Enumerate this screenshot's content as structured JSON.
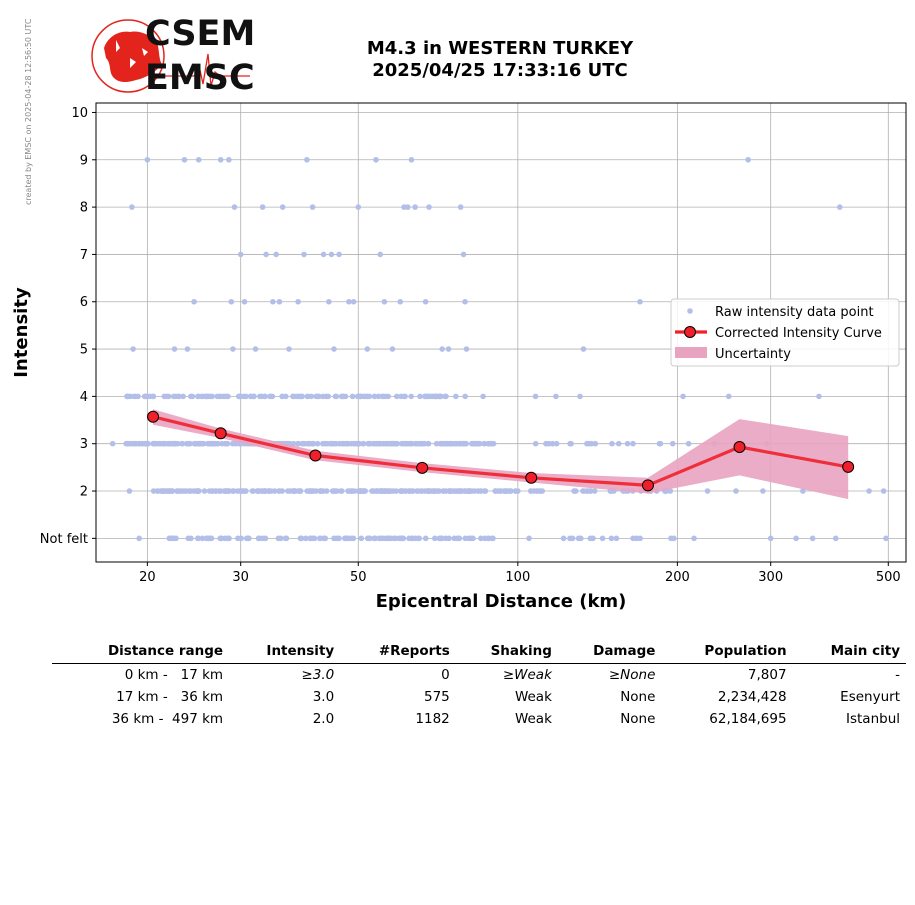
{
  "side_note": "created by EMSC on 2025-04-28 12:56:50 UTC",
  "logo": {
    "line1": "CSEM",
    "line2": "EMSC",
    "accent": "#e3241c"
  },
  "title": {
    "line1": "M4.3 in WESTERN TURKEY",
    "line2": "2025/04/25 17:33:16 UTC"
  },
  "chart_data": {
    "type": "scatter",
    "xlabel": "Epicentral Distance (km)",
    "ylabel": "Intensity",
    "x_scale": "log",
    "xlim": [
      16,
      540
    ],
    "ylim": [
      0.5,
      10.2
    ],
    "x_ticks": [
      20,
      30,
      50,
      100,
      200,
      300,
      500
    ],
    "y_ticks": [
      {
        "value": 1,
        "label": "Not felt"
      },
      {
        "value": 2,
        "label": "2"
      },
      {
        "value": 3,
        "label": "3"
      },
      {
        "value": 4,
        "label": "4"
      },
      {
        "value": 5,
        "label": "5"
      },
      {
        "value": 6,
        "label": "6"
      },
      {
        "value": 7,
        "label": "7"
      },
      {
        "value": 8,
        "label": "8"
      },
      {
        "value": 9,
        "label": "9"
      },
      {
        "value": 10,
        "label": "10"
      }
    ],
    "grid": true,
    "legend_position": "center-right",
    "legend": [
      "Raw intensity data point",
      "Corrected Intensity Curve",
      "Uncertainty"
    ],
    "colors": {
      "raw": "#b3bfe9",
      "curve": "#f0202a",
      "marker_edge": "#000000",
      "uncertainty": "#e8a3c0"
    },
    "raw_points": [
      [
        17.2,
        3
      ],
      [
        18.5,
        2
      ],
      [
        18.8,
        5
      ],
      [
        19.0,
        4
      ],
      [
        19.3,
        1
      ],
      [
        19.8,
        3
      ],
      [
        20.0,
        9
      ],
      [
        20.2,
        4
      ],
      [
        18.7,
        8
      ],
      [
        22.0,
        1
      ],
      [
        23.5,
        9
      ],
      [
        25.0,
        9
      ],
      [
        27.5,
        9
      ],
      [
        28.5,
        9
      ],
      [
        21.5,
        2
      ],
      [
        22.5,
        5
      ],
      [
        23.8,
        5
      ],
      [
        24.5,
        6
      ],
      [
        26.0,
        1
      ],
      [
        28.8,
        6
      ],
      [
        29.0,
        5
      ],
      [
        29.2,
        8
      ],
      [
        30.0,
        7
      ],
      [
        30.5,
        6
      ],
      [
        32.0,
        5
      ],
      [
        33.0,
        8
      ],
      [
        33.5,
        7
      ],
      [
        34.5,
        6
      ],
      [
        35.0,
        7
      ],
      [
        35.5,
        6
      ],
      [
        36.0,
        8
      ],
      [
        37.0,
        5
      ],
      [
        38.5,
        6
      ],
      [
        39.5,
        7
      ],
      [
        40.0,
        9
      ],
      [
        41.0,
        8
      ],
      [
        43.0,
        7
      ],
      [
        44.0,
        6
      ],
      [
        44.5,
        7
      ],
      [
        45.0,
        5
      ],
      [
        46.0,
        7
      ],
      [
        48.0,
        6
      ],
      [
        49.0,
        6
      ],
      [
        50.0,
        8
      ],
      [
        52.0,
        5
      ],
      [
        54.0,
        9
      ],
      [
        55.0,
        7
      ],
      [
        56.0,
        6
      ],
      [
        58.0,
        5
      ],
      [
        60.0,
        6
      ],
      [
        61.0,
        8
      ],
      [
        62.0,
        8
      ],
      [
        63.0,
        9
      ],
      [
        64.0,
        8
      ],
      [
        67.0,
        6
      ],
      [
        68.0,
        8
      ],
      [
        72.0,
        5
      ],
      [
        74.0,
        5
      ],
      [
        78.0,
        8
      ],
      [
        79.0,
        7
      ],
      [
        79.5,
        6
      ],
      [
        80.0,
        5
      ],
      [
        86.0,
        4
      ],
      [
        90.0,
        3
      ],
      [
        95.0,
        2
      ],
      [
        100.0,
        2
      ],
      [
        105.0,
        1
      ],
      [
        108.0,
        4
      ],
      [
        110.0,
        2
      ],
      [
        113.0,
        3
      ],
      [
        118.0,
        4
      ],
      [
        122.0,
        1
      ],
      [
        128.0,
        2
      ],
      [
        131.0,
        4
      ],
      [
        133.0,
        5
      ],
      [
        135.0,
        3
      ],
      [
        140.0,
        3
      ],
      [
        150.0,
        2
      ],
      [
        155.0,
        3
      ],
      [
        160.0,
        2
      ],
      [
        165.0,
        1
      ],
      [
        170.0,
        6
      ],
      [
        178.0,
        2
      ],
      [
        185.0,
        3
      ],
      [
        190.0,
        2
      ],
      [
        197.0,
        1
      ],
      [
        205.0,
        4
      ],
      [
        210.0,
        3
      ],
      [
        215.0,
        1
      ],
      [
        228.0,
        2
      ],
      [
        235.0,
        3
      ],
      [
        250.0,
        4
      ],
      [
        258.0,
        2
      ],
      [
        272.0,
        9
      ],
      [
        290.0,
        2
      ],
      [
        295.0,
        3
      ],
      [
        300.0,
        1
      ],
      [
        335.0,
        1
      ],
      [
        345.0,
        2
      ],
      [
        360.0,
        1
      ],
      [
        370.0,
        4
      ],
      [
        398.0,
        1
      ],
      [
        405.0,
        8
      ],
      [
        460.0,
        2
      ],
      [
        490.0,
        2
      ],
      [
        495.0,
        1
      ]
    ],
    "raw_point_bands": [
      {
        "y": 4,
        "from": 18.3,
        "to": 80.0,
        "count": 140
      },
      {
        "y": 3,
        "from": 18.2,
        "to": 90.0,
        "count": 260
      },
      {
        "y": 2,
        "from": 20.5,
        "to": 100.0,
        "count": 240
      },
      {
        "y": 1,
        "from": 22.0,
        "to": 90.0,
        "count": 110
      },
      {
        "y": 2,
        "from": 105.0,
        "to": 200.0,
        "count": 30
      },
      {
        "y": 3,
        "from": 105.0,
        "to": 200.0,
        "count": 14
      },
      {
        "y": 1,
        "from": 125.0,
        "to": 200.0,
        "count": 12
      }
    ],
    "series": [
      {
        "name": "Corrected Intensity Curve",
        "x": [
          20.5,
          27.5,
          41.5,
          66.0,
          106.0,
          176.0,
          262.0,
          420.0
        ],
        "y": [
          3.57,
          3.22,
          2.75,
          2.49,
          2.28,
          2.12,
          2.93,
          2.51
        ]
      }
    ],
    "uncertainty": {
      "x": [
        20.5,
        27.5,
        41.5,
        66.0,
        106.0,
        176.0,
        262.0,
        420.0
      ],
      "lower": [
        3.4,
        3.12,
        2.65,
        2.4,
        2.18,
        1.95,
        2.33,
        1.83
      ],
      "upper": [
        3.73,
        3.32,
        2.85,
        2.59,
        2.38,
        2.28,
        3.52,
        3.16
      ]
    }
  },
  "table": {
    "headers": [
      "Distance range",
      "Intensity",
      "#Reports",
      "Shaking",
      "Damage",
      "Population",
      "Main city"
    ],
    "rows": [
      {
        "range": "0 km -   17 km",
        "intensity": "≥3.0",
        "reports": "0",
        "shaking": "≥Weak",
        "damage": "≥None",
        "population": "7,807",
        "city": "-",
        "italic": true
      },
      {
        "range": "17 km -   36 km",
        "intensity": "3.0",
        "reports": "575",
        "shaking": "Weak",
        "damage": "None",
        "population": "2,234,428",
        "city": "Esenyurt",
        "italic": false
      },
      {
        "range": "36 km -  497 km",
        "intensity": "2.0",
        "reports": "1182",
        "shaking": "Weak",
        "damage": "None",
        "population": "62,184,695",
        "city": "Istanbul",
        "italic": false
      }
    ]
  }
}
